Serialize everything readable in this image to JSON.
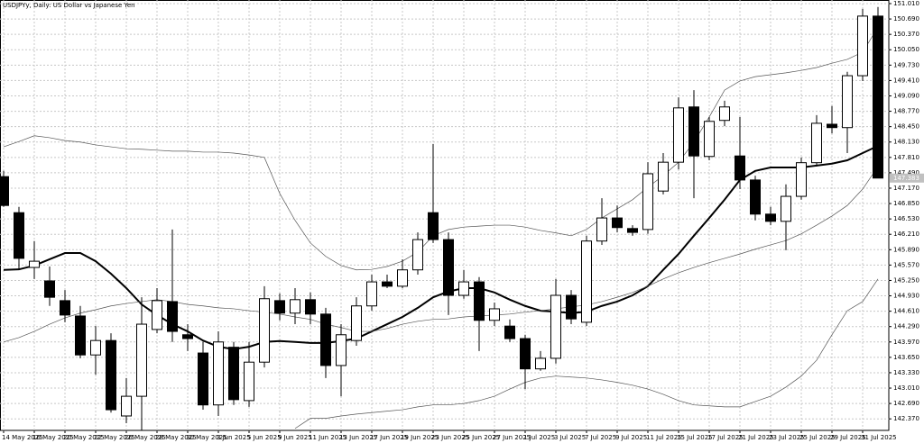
{
  "chart_data": {
    "type": "candlestick",
    "title": "USDJPYy, Daily:  US Dollar vs Japanese Yen",
    "price_tag": "147.383",
    "categories": [
      "14 May 2025",
      null,
      "16 May 2025",
      null,
      "20 May 2025",
      null,
      "22 May 2025",
      null,
      "26 May 2025",
      null,
      "28 May 2025",
      null,
      "30 May 2025",
      null,
      "3 Jun 2025",
      null,
      "5 Jun 2025",
      null,
      "9 Jun 2025",
      null,
      "11 Jun 2025",
      null,
      "13 Jun 2025",
      null,
      "17 Jun 2025",
      null,
      "19 Jun 2025",
      null,
      "23 Jun 2025",
      null,
      "25 Jun 2025",
      null,
      "27 Jun 2025",
      null,
      "1 Jul 2025",
      null,
      "3 Jul 2025",
      null,
      "7 Jul 2025",
      null,
      "9 Jul 2025",
      null,
      "11 Jul 2025",
      null,
      "15 Jul 2025",
      null,
      "17 Jul 2025",
      null,
      "21 Jul 2025",
      null,
      "23 Jul 2025",
      null,
      "25 Jul 2025",
      null,
      "29 Jul 2025",
      null,
      "31 Jul 2025",
      null
    ],
    "open": [
      147.41,
      146.66,
      145.52,
      145.24,
      144.83,
      144.51,
      143.7,
      144.0,
      142.43,
      142.84,
      144.23,
      144.81,
      144.12,
      143.74,
      142.66,
      143.86,
      142.75,
      143.55,
      144.83,
      144.57,
      144.85,
      144.55,
      143.48,
      144.0,
      144.72,
      145.22,
      145.13,
      145.47,
      146.66,
      146.1,
      144.94,
      145.22,
      144.42,
      144.3,
      144.04,
      143.41,
      143.63,
      144.94,
      144.38,
      146.07,
      146.55,
      146.33,
      146.31,
      147.11,
      147.71,
      148.86,
      147.83,
      148.58,
      147.84,
      147.34,
      146.63,
      146.48,
      147.0,
      147.7,
      148.5,
      148.43,
      149.51,
      150.75
    ],
    "high": [
      147.53,
      146.78,
      146.07,
      145.54,
      145.05,
      144.72,
      144.3,
      144.15,
      143.22,
      144.9,
      145.09,
      146.31,
      144.34,
      143.97,
      144.19,
      143.97,
      143.97,
      145.13,
      144.98,
      145.09,
      145.0,
      144.68,
      144.34,
      144.9,
      145.37,
      145.37,
      145.69,
      146.25,
      148.09,
      146.25,
      145.47,
      145.32,
      144.79,
      144.44,
      144.12,
      143.78,
      145.28,
      145.05,
      146.18,
      146.96,
      146.81,
      146.4,
      147.71,
      147.9,
      149.06,
      149.21,
      148.65,
      148.99,
      148.65,
      147.43,
      146.78,
      147.25,
      147.81,
      148.69,
      148.88,
      149.59,
      150.9,
      150.94
    ],
    "low": [
      146.78,
      145.47,
      145.28,
      144.72,
      144.38,
      143.63,
      143.29,
      142.5,
      142.28,
      142.13,
      144.15,
      143.97,
      143.78,
      142.56,
      142.43,
      142.66,
      142.62,
      143.44,
      144.42,
      144.34,
      144.34,
      143.22,
      142.84,
      143.89,
      144.62,
      145.09,
      145.09,
      145.37,
      146.03,
      144.53,
      144.87,
      143.78,
      144.3,
      143.97,
      142.99,
      143.37,
      143.52,
      144.34,
      144.3,
      145.99,
      146.25,
      146.18,
      146.22,
      147.04,
      147.56,
      146.96,
      147.75,
      148.46,
      147.15,
      146.5,
      146.4,
      145.88,
      146.93,
      147.62,
      148.31,
      147.9,
      149.4,
      147.38
    ],
    "close": [
      146.81,
      145.71,
      145.65,
      144.9,
      144.53,
      143.7,
      144.0,
      142.56,
      142.84,
      144.34,
      144.83,
      144.19,
      144.04,
      142.66,
      143.97,
      142.77,
      143.55,
      144.87,
      144.57,
      144.85,
      144.55,
      143.48,
      144.12,
      144.72,
      145.22,
      145.13,
      145.47,
      146.1,
      146.1,
      144.94,
      145.22,
      144.42,
      144.66,
      144.04,
      143.41,
      143.63,
      144.94,
      144.45,
      146.07,
      146.55,
      146.35,
      146.25,
      147.47,
      147.71,
      148.84,
      147.84,
      148.56,
      148.86,
      147.34,
      146.63,
      146.48,
      147.0,
      147.7,
      148.52,
      148.43,
      149.51,
      150.75,
      147.38
    ],
    "up_color": "#ffffff",
    "down_color": "#000000",
    "lines": [
      {
        "color": "#000000",
        "width": 2,
        "values": [
          145.47,
          145.48,
          145.56,
          145.69,
          145.82,
          145.82,
          145.65,
          145.39,
          145.09,
          144.75,
          144.53,
          144.34,
          144.19,
          144.0,
          143.87,
          143.82,
          143.87,
          143.97,
          143.99,
          143.97,
          143.95,
          143.95,
          143.99,
          144.04,
          144.19,
          144.34,
          144.49,
          144.68,
          144.9,
          145.02,
          145.09,
          145.09,
          145.0,
          144.85,
          144.72,
          144.62,
          144.6,
          144.57,
          144.6,
          144.72,
          144.81,
          144.94,
          145.13,
          145.47,
          145.8,
          146.18,
          146.55,
          146.93,
          147.34,
          147.53,
          147.6,
          147.6,
          147.6,
          147.64,
          147.68,
          147.75,
          147.9,
          148.05
        ]
      },
      {
        "color": "#555555",
        "width": 0.7,
        "values": [
          143.97,
          144.06,
          144.19,
          144.34,
          144.47,
          144.57,
          144.64,
          144.72,
          144.77,
          144.81,
          144.85,
          144.81,
          144.75,
          144.72,
          144.68,
          144.66,
          144.62,
          144.59,
          144.55,
          144.49,
          144.44,
          144.34,
          144.27,
          144.19,
          144.19,
          144.25,
          144.34,
          144.4,
          144.44,
          144.45,
          144.49,
          144.51,
          144.53,
          144.55,
          144.59,
          144.62,
          144.66,
          144.7,
          144.74,
          144.81,
          144.9,
          145.0,
          145.13,
          145.28,
          145.41,
          145.52,
          145.62,
          145.71,
          145.8,
          145.9,
          145.99,
          146.08,
          146.22,
          146.4,
          146.59,
          146.81,
          147.15,
          147.62
        ]
      },
      {
        "color": "#555555",
        "width": 0.7,
        "values": [
          148.03,
          148.14,
          148.26,
          148.22,
          148.16,
          148.13,
          148.07,
          148.03,
          147.99,
          147.98,
          147.96,
          147.94,
          147.94,
          147.92,
          147.92,
          147.9,
          147.86,
          147.81,
          147.06,
          146.5,
          146.03,
          145.75,
          145.56,
          145.47,
          145.48,
          145.54,
          145.65,
          145.84,
          146.18,
          146.31,
          146.36,
          146.38,
          146.4,
          146.4,
          146.36,
          146.29,
          146.24,
          146.18,
          146.31,
          146.55,
          146.74,
          146.93,
          147.19,
          147.43,
          147.71,
          148.13,
          148.65,
          149.21,
          149.4,
          149.49,
          149.53,
          149.57,
          149.62,
          149.68,
          149.77,
          149.85,
          150.0,
          150.52
        ]
      },
      {
        "color": "#555555",
        "width": 0.7,
        "values": [
          null,
          null,
          null,
          null,
          null,
          null,
          null,
          null,
          null,
          null,
          null,
          null,
          null,
          null,
          null,
          null,
          null,
          null,
          null,
          142.17,
          142.38,
          142.38,
          142.43,
          142.47,
          142.5,
          142.53,
          142.56,
          142.62,
          142.66,
          142.66,
          142.69,
          142.75,
          142.84,
          142.99,
          143.13,
          143.22,
          143.26,
          143.24,
          143.22,
          143.18,
          143.13,
          143.07,
          142.99,
          142.88,
          142.75,
          142.66,
          142.64,
          142.62,
          142.62,
          142.73,
          142.84,
          143.03,
          143.26,
          143.59,
          144.12,
          144.62,
          144.81,
          145.28
        ]
      }
    ],
    "ylim": [
      142.13,
      151.085
    ],
    "yticks": [
      {
        "value": 151.01,
        "label": "151.010"
      },
      {
        "value": 150.69,
        "label": "150.690"
      },
      {
        "value": 150.37,
        "label": "150.370"
      },
      {
        "value": 150.05,
        "label": "150.050"
      },
      {
        "value": 149.73,
        "label": "149.730"
      },
      {
        "value": 149.41,
        "label": "149.410"
      },
      {
        "value": 149.09,
        "label": "149.090"
      },
      {
        "value": 148.77,
        "label": "148.770"
      },
      {
        "value": 148.45,
        "label": "148.450"
      },
      {
        "value": 148.13,
        "label": "148.130"
      },
      {
        "value": 147.81,
        "label": "147.810"
      },
      {
        "value": 147.49,
        "label": "147.490"
      },
      {
        "value": 147.17,
        "label": "147.170"
      },
      {
        "value": 146.85,
        "label": "146.850"
      },
      {
        "value": 146.53,
        "label": "146.530"
      },
      {
        "value": 146.21,
        "label": "146.210"
      },
      {
        "value": 145.89,
        "label": "145.890"
      },
      {
        "value": 145.57,
        "label": "145.570"
      },
      {
        "value": 145.25,
        "label": "145.250"
      },
      {
        "value": 144.93,
        "label": "144.930"
      },
      {
        "value": 144.61,
        "label": "144.610"
      },
      {
        "value": 144.29,
        "label": "144.290"
      },
      {
        "value": 143.97,
        "label": "143.970"
      },
      {
        "value": 143.65,
        "label": "143.650"
      },
      {
        "value": 143.33,
        "label": "143.330"
      },
      {
        "value": 143.01,
        "label": "143.010"
      },
      {
        "value": 142.69,
        "label": "142.690"
      },
      {
        "value": 142.37,
        "label": "142.370"
      }
    ],
    "grid": true
  }
}
